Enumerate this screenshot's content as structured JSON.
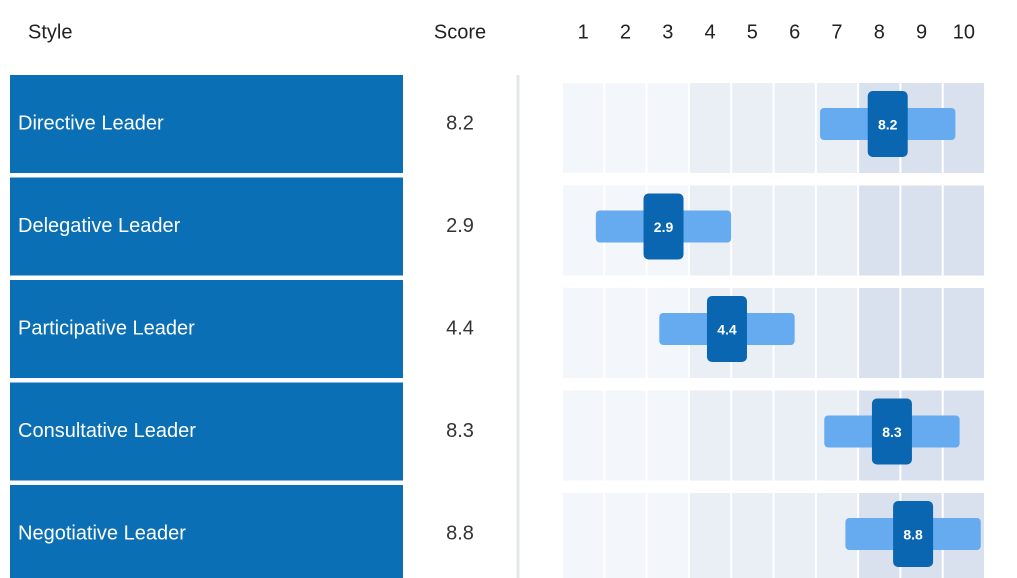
{
  "chart_data": {
    "type": "range",
    "column_headers": [
      "Style",
      "Score"
    ],
    "categories": [
      "Directive Leader",
      "Delegative Leader",
      "Participative Leader",
      "Consultative Leader",
      "Negotiative Leader"
    ],
    "values": [
      8.2,
      2.9,
      4.4,
      8.3,
      8.8
    ],
    "low": [
      6.6,
      1.3,
      2.8,
      6.7,
      7.2
    ],
    "high": [
      9.8,
      4.5,
      6.0,
      9.9,
      10.4
    ],
    "xlim": [
      0.5,
      10.5
    ],
    "xticks": [
      1,
      2,
      3,
      4,
      5,
      6,
      7,
      8,
      9,
      10
    ],
    "label_color": "#0a6fb5",
    "bar_color": "#66aaf0",
    "marker_color": "#0a66b0"
  }
}
